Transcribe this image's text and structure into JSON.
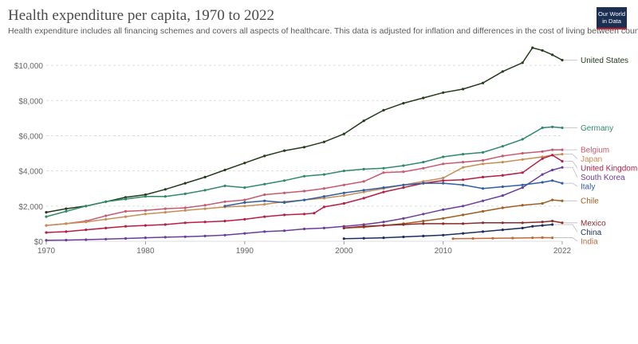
{
  "header": {
    "title": "Health expenditure per capita, 1970 to 2022",
    "subtitle": "Health expenditure includes all financing schemes and covers all aspects of healthcare. This data is adjusted for inflation and differences in the cost of living between countries.",
    "logo_line1": "Our World",
    "logo_line2": "in Data"
  },
  "chart_data": {
    "type": "line",
    "title": "Health expenditure per capita, 1970 to 2022",
    "xlim": [
      1970,
      2022
    ],
    "ylim": [
      0,
      11000
    ],
    "x_ticks": [
      {
        "value": 1970,
        "label": "1970"
      },
      {
        "value": 1980,
        "label": "1980"
      },
      {
        "value": 1990,
        "label": "1990"
      },
      {
        "value": 2000,
        "label": "2000"
      },
      {
        "value": 2010,
        "label": "2010"
      },
      {
        "value": 2022,
        "label": "2022"
      }
    ],
    "y_ticks": [
      {
        "value": 0,
        "label": "$0"
      },
      {
        "value": 2000,
        "label": "$2,000"
      },
      {
        "value": 4000,
        "label": "$4,000"
      },
      {
        "value": 6000,
        "label": "$6,000"
      },
      {
        "value": 8000,
        "label": "$8,000"
      },
      {
        "value": 10000,
        "label": "$10,000"
      }
    ],
    "grid": true,
    "series": [
      {
        "name": "United States",
        "color": "#233b1a",
        "x": [
          1970,
          1972,
          1974,
          1976,
          1978,
          1980,
          1982,
          1984,
          1986,
          1988,
          1990,
          1992,
          1994,
          1996,
          1998,
          2000,
          2002,
          2004,
          2006,
          2008,
          2010,
          2012,
          2014,
          2016,
          2018,
          2019,
          2020,
          2021,
          2022
        ],
        "y": [
          1650,
          1850,
          2000,
          2250,
          2500,
          2650,
          2950,
          3300,
          3650,
          4050,
          4450,
          4850,
          5150,
          5350,
          5650,
          6100,
          6850,
          7450,
          7850,
          8150,
          8450,
          8650,
          9000,
          9650,
          10150,
          11000,
          10850,
          10600,
          10300
        ]
      },
      {
        "name": "Germany",
        "color": "#2e8a67",
        "x": [
          1970,
          1972,
          1974,
          1976,
          1978,
          1980,
          1982,
          1984,
          1986,
          1988,
          1990,
          1992,
          1994,
          1996,
          1998,
          2000,
          2002,
          2004,
          2006,
          2008,
          2010,
          2012,
          2014,
          2016,
          2018,
          2020,
          2021,
          2022
        ],
        "y": [
          1400,
          1700,
          2000,
          2250,
          2400,
          2550,
          2550,
          2700,
          2900,
          3150,
          3050,
          3250,
          3450,
          3700,
          3800,
          4000,
          4100,
          4150,
          4300,
          4500,
          4800,
          4950,
          5050,
          5400,
          5800,
          6450,
          6500,
          6450
        ]
      },
      {
        "name": "Belgium",
        "color": "#c75a70",
        "x": [
          1970,
          1972,
          1974,
          1976,
          1978,
          1980,
          1982,
          1984,
          1986,
          1988,
          1990,
          1992,
          1994,
          1996,
          1998,
          2000,
          2002,
          2004,
          2006,
          2008,
          2010,
          2012,
          2014,
          2016,
          2018,
          2020,
          2021,
          2022
        ],
        "y": [
          900,
          1000,
          1150,
          1450,
          1700,
          1750,
          1850,
          1900,
          2050,
          2250,
          2350,
          2650,
          2750,
          2850,
          3000,
          3200,
          3400,
          3900,
          3950,
          4150,
          4400,
          4500,
          4600,
          4850,
          5000,
          5100,
          5200,
          5200
        ]
      },
      {
        "name": "Japan",
        "color": "#c78d56",
        "x": [
          1970,
          1972,
          1974,
          1976,
          1978,
          1980,
          1982,
          1984,
          1986,
          1988,
          1990,
          1992,
          1994,
          1996,
          1998,
          2000,
          2002,
          2004,
          2006,
          2008,
          2010,
          2012,
          2014,
          2016,
          2018,
          2020,
          2021,
          2022
        ],
        "y": [
          900,
          1000,
          1100,
          1250,
          1400,
          1550,
          1650,
          1750,
          1850,
          1950,
          2000,
          2100,
          2250,
          2350,
          2450,
          2600,
          2800,
          3000,
          3200,
          3400,
          3600,
          4200,
          4400,
          4500,
          4650,
          4800,
          4900,
          4950
        ]
      },
      {
        "name": "United Kingdom",
        "color": "#b81d44",
        "x": [
          1970,
          1972,
          1974,
          1976,
          1978,
          1980,
          1982,
          1984,
          1986,
          1988,
          1990,
          1992,
          1994,
          1996,
          1997,
          1998,
          2000,
          2002,
          2004,
          2006,
          2008,
          2010,
          2012,
          2014,
          2016,
          2018,
          2020,
          2021,
          2022
        ],
        "y": [
          500,
          550,
          650,
          750,
          850,
          900,
          950,
          1050,
          1100,
          1150,
          1250,
          1400,
          1500,
          1550,
          1600,
          1950,
          2150,
          2450,
          2800,
          3050,
          3300,
          3450,
          3500,
          3650,
          3750,
          3900,
          4700,
          4900,
          4550
        ]
      },
      {
        "name": "South Korea",
        "color": "#6a3d9a",
        "x": [
          1970,
          1972,
          1974,
          1976,
          1978,
          1980,
          1982,
          1984,
          1986,
          1988,
          1990,
          1992,
          1994,
          1996,
          1998,
          2000,
          2002,
          2004,
          2006,
          2008,
          2010,
          2012,
          2014,
          2016,
          2018,
          2020,
          2021,
          2022
        ],
        "y": [
          60,
          70,
          90,
          120,
          160,
          200,
          230,
          260,
          300,
          350,
          450,
          550,
          600,
          700,
          750,
          850,
          950,
          1100,
          1300,
          1550,
          1800,
          2000,
          2300,
          2600,
          3050,
          3800,
          4050,
          4200
        ]
      },
      {
        "name": "Italy",
        "color": "#2f5fa3",
        "x": [
          1988,
          1990,
          1992,
          1994,
          1996,
          1998,
          2000,
          2002,
          2004,
          2006,
          2008,
          2010,
          2012,
          2014,
          2016,
          2018,
          2020,
          2021,
          2022
        ],
        "y": [
          2000,
          2200,
          2300,
          2200,
          2350,
          2550,
          2750,
          2900,
          3050,
          3200,
          3300,
          3300,
          3200,
          3000,
          3100,
          3200,
          3350,
          3450,
          3300
        ]
      },
      {
        "name": "Chile",
        "color": "#a15e1f",
        "x": [
          2000,
          2002,
          2004,
          2006,
          2008,
          2010,
          2012,
          2014,
          2016,
          2018,
          2020,
          2021,
          2022
        ],
        "y": [
          750,
          800,
          900,
          1000,
          1150,
          1300,
          1500,
          1700,
          1900,
          2050,
          2150,
          2350,
          2300
        ]
      },
      {
        "name": "Mexico",
        "color": "#8c2a2a",
        "x": [
          2000,
          2002,
          2004,
          2006,
          2008,
          2010,
          2012,
          2014,
          2016,
          2018,
          2020,
          2021,
          2022
        ],
        "y": [
          750,
          850,
          900,
          950,
          1000,
          1000,
          1000,
          1050,
          1050,
          1050,
          1100,
          1150,
          1050
        ]
      },
      {
        "name": "China",
        "color": "#1c2e5a",
        "x": [
          2000,
          2002,
          2004,
          2006,
          2008,
          2010,
          2012,
          2014,
          2016,
          2018,
          2019,
          2020,
          2021
        ],
        "y": [
          150,
          170,
          200,
          250,
          300,
          350,
          450,
          550,
          650,
          750,
          850,
          900,
          950
        ]
      },
      {
        "name": "India",
        "color": "#bd6b3b",
        "x": [
          2011,
          2013,
          2015,
          2017,
          2019,
          2020,
          2021
        ],
        "y": [
          150,
          160,
          170,
          180,
          200,
          210,
          200
        ]
      }
    ]
  }
}
